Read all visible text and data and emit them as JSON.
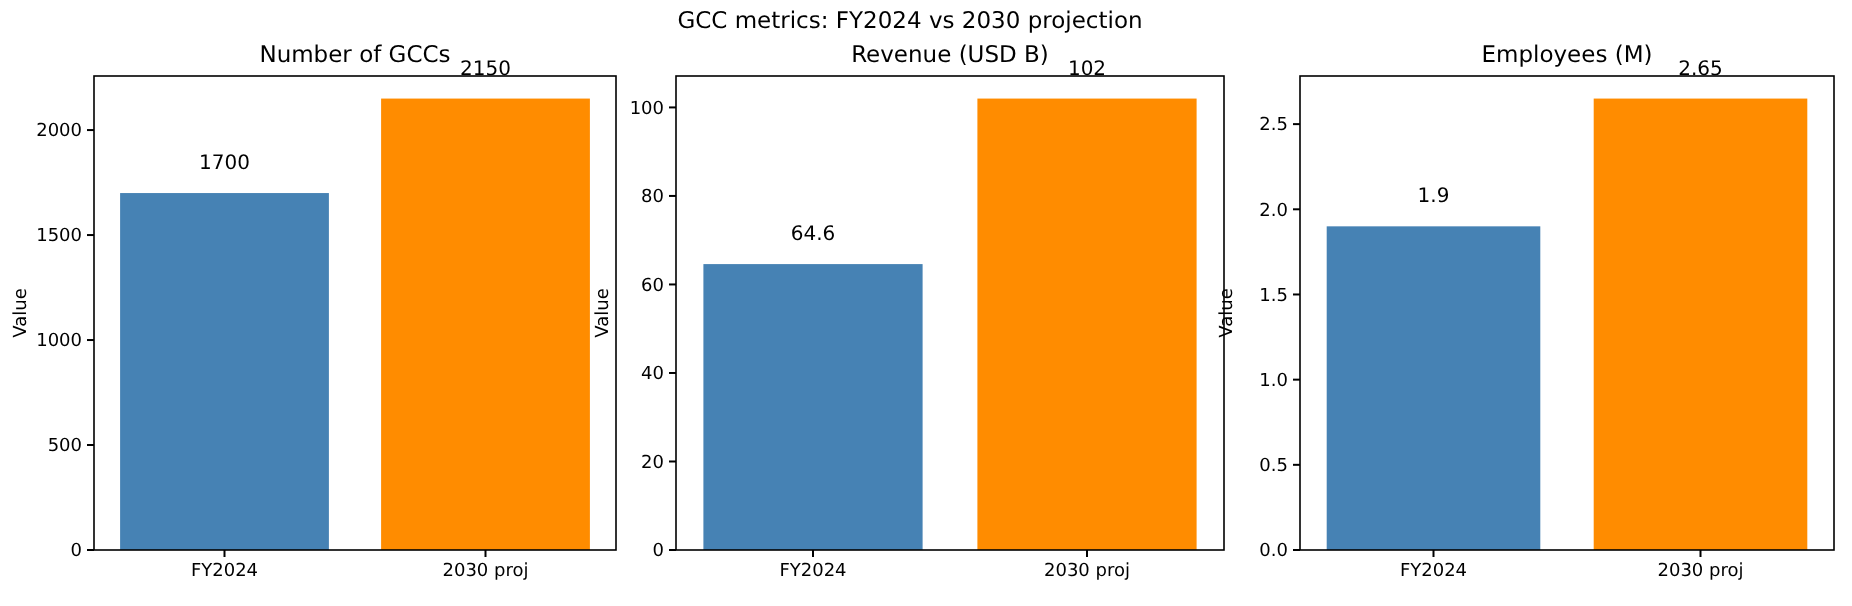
{
  "chart_data": [
    {
      "type": "bar",
      "title": "Number of GCCs",
      "annotations": [
        "GCC metrics: FY2024 vs 2030 projection"
      ],
      "ylabel": "Value",
      "categories": [
        "FY2024",
        "2030 proj"
      ],
      "values": [
        1700,
        2150
      ],
      "colors": [
        "#4682b4",
        "#ff8c00"
      ],
      "ylim": [
        0,
        2257.5
      ],
      "yticks": [
        0,
        500,
        1000,
        1500,
        2000
      ],
      "data_labels": true
    },
    {
      "type": "bar",
      "title": "Revenue (USD B)",
      "ylabel": "Value",
      "categories": [
        "FY2024",
        "2030 proj"
      ],
      "values": [
        64.6,
        102
      ],
      "colors": [
        "#4682b4",
        "#ff8c00"
      ],
      "ylim": [
        0,
        107.1
      ],
      "yticks": [
        0,
        20,
        40,
        60,
        80,
        100
      ],
      "data_labels": true
    },
    {
      "type": "bar",
      "title": "Employees (M)",
      "ylabel": "Value",
      "categories": [
        "FY2024",
        "2030 proj"
      ],
      "values": [
        1.9,
        2.65
      ],
      "colors": [
        "#4682b4",
        "#ff8c00"
      ],
      "ylim": [
        0,
        2.7825
      ],
      "yticks": [
        {
          "value": 0,
          "label": "0.0"
        },
        {
          "value": 0.5,
          "label": "0.5"
        },
        {
          "value": 1,
          "label": "1.0"
        },
        {
          "value": 1.5,
          "label": "1.5"
        },
        {
          "value": 2,
          "label": "2.0"
        },
        {
          "value": 2.5,
          "label": "2.5"
        }
      ],
      "data_labels": true
    }
  ]
}
